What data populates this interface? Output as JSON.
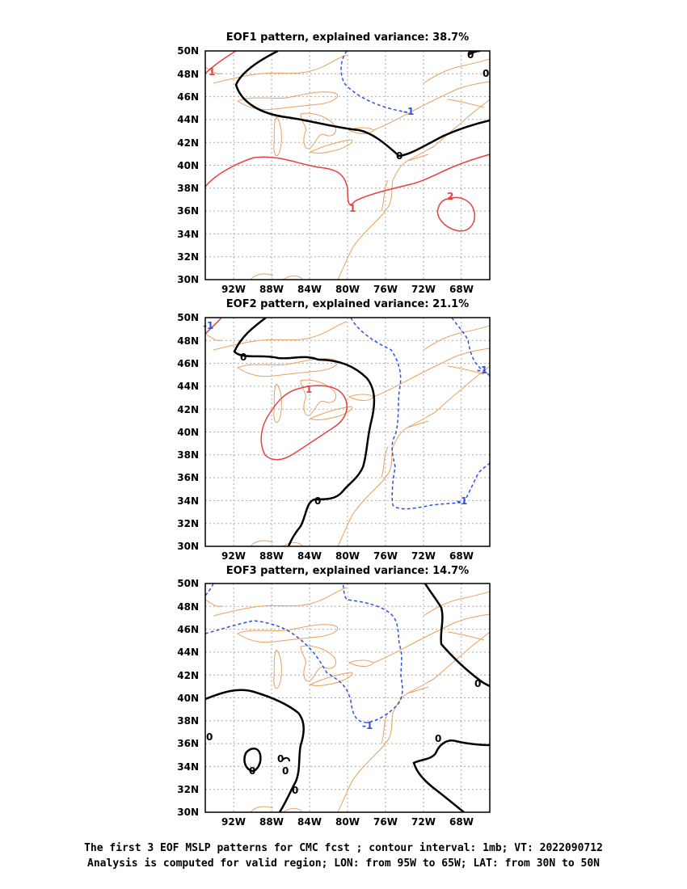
{
  "panels": [
    {
      "title": "EOF1 pattern, explained variance: 38.7%",
      "lat_labels": [
        "50N",
        "48N",
        "46N",
        "44N",
        "42N",
        "40N",
        "38N",
        "36N",
        "34N",
        "32N",
        "30N"
      ],
      "lon_labels": [
        "92W",
        "88W",
        "84W",
        "80W",
        "76W",
        "72W",
        "68W"
      ],
      "contour_labels": [
        {
          "text": "1",
          "color": "#e84040"
        },
        {
          "text": "0",
          "color": "#000000"
        },
        {
          "text": "-1",
          "color": "#3050e0"
        },
        {
          "text": "0",
          "color": "#000000"
        },
        {
          "text": "1",
          "color": "#e84040"
        },
        {
          "text": "2",
          "color": "#e84040"
        },
        {
          "text": "0",
          "color": "#000000"
        }
      ]
    },
    {
      "title": "EOF2 pattern, explained variance: 21.1%",
      "lat_labels": [
        "50N",
        "48N",
        "46N",
        "44N",
        "42N",
        "40N",
        "38N",
        "36N",
        "34N",
        "32N",
        "30N"
      ],
      "lon_labels": [
        "92W",
        "88W",
        "84W",
        "80W",
        "76W",
        "72W",
        "68W"
      ],
      "contour_labels": [
        {
          "text": "0",
          "color": "#000000"
        },
        {
          "text": "1",
          "color": "#e84040"
        },
        {
          "text": "0",
          "color": "#000000"
        },
        {
          "text": "-1",
          "color": "#3050e0"
        },
        {
          "text": "-1",
          "color": "#3050e0"
        },
        {
          "text": "-1",
          "color": "#3050e0"
        }
      ]
    },
    {
      "title": "EOF3 pattern, explained variance: 14.7%",
      "lat_labels": [
        "50N",
        "48N",
        "46N",
        "44N",
        "42N",
        "40N",
        "38N",
        "36N",
        "34N",
        "32N",
        "30N"
      ],
      "lon_labels": [
        "92W",
        "88W",
        "84W",
        "80W",
        "76W",
        "72W",
        "68W"
      ],
      "contour_labels": [
        {
          "text": "0",
          "color": "#000000"
        },
        {
          "text": "-1",
          "color": "#3050e0"
        },
        {
          "text": "0",
          "color": "#000000"
        },
        {
          "text": "0",
          "color": "#000000"
        },
        {
          "text": "0",
          "color": "#000000"
        },
        {
          "text": "0",
          "color": "#000000"
        },
        {
          "text": "0",
          "color": "#000000"
        },
        {
          "text": "0",
          "color": "#000000"
        }
      ]
    }
  ],
  "caption": {
    "line1": "The first 3 EOF MSLP patterns for CMC fcst ; contour interval: 1mb; VT: 2022090712",
    "line2": "Analysis is computed for valid region; LON: from 95W to 65W; LAT: from 30N to 50N"
  },
  "colors": {
    "positive": "#e84040",
    "negative": "#3050e0",
    "zero": "#000000",
    "coastline": "#e8a060",
    "grid": "#aaaaaa"
  }
}
